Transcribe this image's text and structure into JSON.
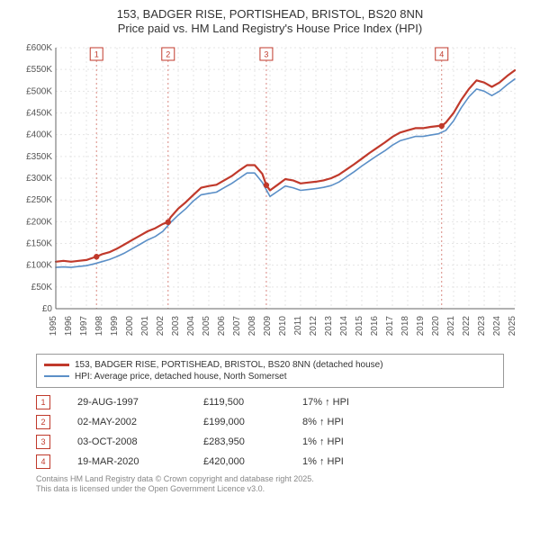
{
  "title_line1": "153, BADGER RISE, PORTISHEAD, BRISTOL, BS20 8NN",
  "title_line2": "Price paid vs. HM Land Registry's House Price Index (HPI)",
  "chart": {
    "type": "line",
    "background_color": "#ffffff",
    "grid_color": "#e5e5e5",
    "grid_dash": "2,3",
    "axis_color": "#666666",
    "tick_fontsize": 10,
    "tick_color": "#555555",
    "ylim": [
      0,
      600000
    ],
    "ytick_step": 50000,
    "ytick_labels": [
      "£0",
      "£50K",
      "£100K",
      "£150K",
      "£200K",
      "£250K",
      "£300K",
      "£350K",
      "£400K",
      "£450K",
      "£500K",
      "£550K",
      "£600K"
    ],
    "xlim": [
      1995,
      2025
    ],
    "xticks": [
      1995,
      1996,
      1997,
      1998,
      1999,
      2000,
      2001,
      2002,
      2003,
      2004,
      2005,
      2006,
      2007,
      2008,
      2009,
      2010,
      2011,
      2012,
      2013,
      2014,
      2015,
      2016,
      2017,
      2018,
      2019,
      2020,
      2021,
      2022,
      2023,
      2024,
      2025
    ],
    "series": [
      {
        "name": "property",
        "label": "153, BADGER RISE, PORTISHEAD, BRISTOL, BS20 8NN (detached house)",
        "color": "#c0392b",
        "line_width": 2.2,
        "data": [
          [
            1995.0,
            108000
          ],
          [
            1995.5,
            110000
          ],
          [
            1996.0,
            108000
          ],
          [
            1996.5,
            110000
          ],
          [
            1997.0,
            112000
          ],
          [
            1997.5,
            118000
          ],
          [
            1997.66,
            119500
          ],
          [
            1998.0,
            125000
          ],
          [
            1998.5,
            130000
          ],
          [
            1999.0,
            138000
          ],
          [
            1999.5,
            148000
          ],
          [
            2000.0,
            158000
          ],
          [
            2000.5,
            168000
          ],
          [
            2001.0,
            178000
          ],
          [
            2001.5,
            185000
          ],
          [
            2002.0,
            195000
          ],
          [
            2002.34,
            199000
          ],
          [
            2002.5,
            210000
          ],
          [
            2003.0,
            230000
          ],
          [
            2003.5,
            245000
          ],
          [
            2004.0,
            262000
          ],
          [
            2004.5,
            278000
          ],
          [
            2005.0,
            282000
          ],
          [
            2005.5,
            285000
          ],
          [
            2006.0,
            295000
          ],
          [
            2006.5,
            305000
          ],
          [
            2007.0,
            318000
          ],
          [
            2007.5,
            330000
          ],
          [
            2008.0,
            330000
          ],
          [
            2008.5,
            310000
          ],
          [
            2008.76,
            283950
          ],
          [
            2009.0,
            272000
          ],
          [
            2009.5,
            285000
          ],
          [
            2010.0,
            298000
          ],
          [
            2010.5,
            295000
          ],
          [
            2011.0,
            288000
          ],
          [
            2011.5,
            290000
          ],
          [
            2012.0,
            292000
          ],
          [
            2012.5,
            295000
          ],
          [
            2013.0,
            300000
          ],
          [
            2013.5,
            308000
          ],
          [
            2014.0,
            320000
          ],
          [
            2014.5,
            332000
          ],
          [
            2015.0,
            345000
          ],
          [
            2015.5,
            358000
          ],
          [
            2016.0,
            370000
          ],
          [
            2016.5,
            382000
          ],
          [
            2017.0,
            395000
          ],
          [
            2017.5,
            405000
          ],
          [
            2018.0,
            410000
          ],
          [
            2018.5,
            415000
          ],
          [
            2019.0,
            415000
          ],
          [
            2019.5,
            418000
          ],
          [
            2020.0,
            420000
          ],
          [
            2020.22,
            420000
          ],
          [
            2020.5,
            428000
          ],
          [
            2021.0,
            450000
          ],
          [
            2021.5,
            480000
          ],
          [
            2022.0,
            505000
          ],
          [
            2022.5,
            525000
          ],
          [
            2023.0,
            520000
          ],
          [
            2023.5,
            510000
          ],
          [
            2024.0,
            520000
          ],
          [
            2024.5,
            535000
          ],
          [
            2025.0,
            548000
          ]
        ]
      },
      {
        "name": "hpi",
        "label": "HPI: Average price, detached house, North Somerset",
        "color": "#5b8fc7",
        "line_width": 1.6,
        "data": [
          [
            1995.0,
            95000
          ],
          [
            1995.5,
            96000
          ],
          [
            1996.0,
            95000
          ],
          [
            1996.5,
            97000
          ],
          [
            1997.0,
            99000
          ],
          [
            1997.5,
            103000
          ],
          [
            1998.0,
            108000
          ],
          [
            1998.5,
            113000
          ],
          [
            1999.0,
            120000
          ],
          [
            1999.5,
            128000
          ],
          [
            2000.0,
            138000
          ],
          [
            2000.5,
            148000
          ],
          [
            2001.0,
            158000
          ],
          [
            2001.5,
            166000
          ],
          [
            2002.0,
            178000
          ],
          [
            2002.5,
            198000
          ],
          [
            2003.0,
            215000
          ],
          [
            2003.5,
            230000
          ],
          [
            2004.0,
            248000
          ],
          [
            2004.5,
            262000
          ],
          [
            2005.0,
            265000
          ],
          [
            2005.5,
            268000
          ],
          [
            2006.0,
            278000
          ],
          [
            2006.5,
            288000
          ],
          [
            2007.0,
            300000
          ],
          [
            2007.5,
            312000
          ],
          [
            2008.0,
            312000
          ],
          [
            2008.5,
            290000
          ],
          [
            2009.0,
            258000
          ],
          [
            2009.5,
            270000
          ],
          [
            2010.0,
            282000
          ],
          [
            2010.5,
            278000
          ],
          [
            2011.0,
            272000
          ],
          [
            2011.5,
            274000
          ],
          [
            2012.0,
            276000
          ],
          [
            2012.5,
            279000
          ],
          [
            2013.0,
            283000
          ],
          [
            2013.5,
            291000
          ],
          [
            2014.0,
            303000
          ],
          [
            2014.5,
            315000
          ],
          [
            2015.0,
            328000
          ],
          [
            2015.5,
            340000
          ],
          [
            2016.0,
            352000
          ],
          [
            2016.5,
            363000
          ],
          [
            2017.0,
            376000
          ],
          [
            2017.5,
            386000
          ],
          [
            2018.0,
            391000
          ],
          [
            2018.5,
            396000
          ],
          [
            2019.0,
            396000
          ],
          [
            2019.5,
            399000
          ],
          [
            2020.0,
            402000
          ],
          [
            2020.5,
            410000
          ],
          [
            2021.0,
            432000
          ],
          [
            2021.5,
            462000
          ],
          [
            2022.0,
            487000
          ],
          [
            2022.5,
            505000
          ],
          [
            2023.0,
            500000
          ],
          [
            2023.5,
            490000
          ],
          [
            2024.0,
            500000
          ],
          [
            2024.5,
            515000
          ],
          [
            2025.0,
            528000
          ]
        ]
      }
    ],
    "markers": [
      {
        "n": "1",
        "x": 1997.66,
        "y": 119500,
        "date": "29-AUG-1997",
        "price": "£119,500",
        "pct": "17% ↑ HPI"
      },
      {
        "n": "2",
        "x": 2002.34,
        "y": 199000,
        "date": "02-MAY-2002",
        "price": "£199,000",
        "pct": "8% ↑ HPI"
      },
      {
        "n": "3",
        "x": 2008.76,
        "y": 283950,
        "date": "03-OCT-2008",
        "price": "£283,950",
        "pct": "1% ↑ HPI"
      },
      {
        "n": "4",
        "x": 2020.22,
        "y": 420000,
        "date": "19-MAR-2020",
        "price": "£420,000",
        "pct": "1% ↑ HPI"
      }
    ],
    "marker_box_border": "#c0392b",
    "marker_box_text": "#c0392b",
    "marker_line_color": "#d98880",
    "marker_line_dash": "2,3",
    "marker_point_fill": "#c0392b"
  },
  "legend": {
    "items": [
      {
        "color": "#c0392b",
        "label": "153, BADGER RISE, PORTISHEAD, BRISTOL, BS20 8NN (detached house)"
      },
      {
        "color": "#5b8fc7",
        "label": "HPI: Average price, detached house, North Somerset"
      }
    ]
  },
  "footer_line1": "Contains HM Land Registry data © Crown copyright and database right 2025.",
  "footer_line2": "This data is licensed under the Open Government Licence v3.0."
}
